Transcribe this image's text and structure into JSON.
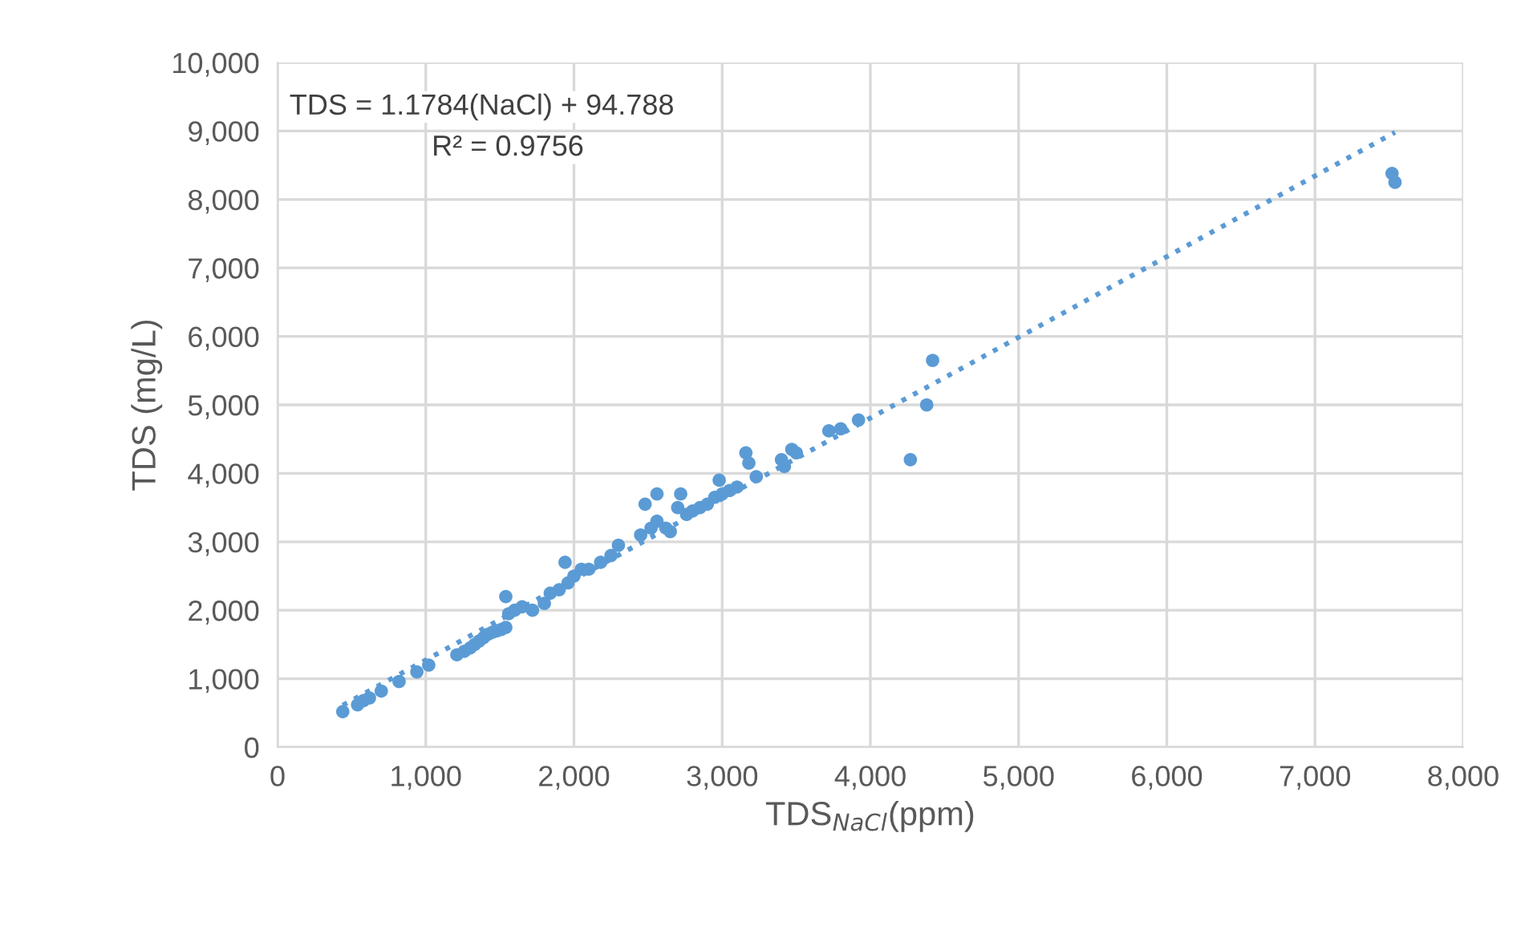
{
  "chart_data": {
    "type": "scatter",
    "xlabel": "TDS$_{NaCl}$(ppm)",
    "ylabel": "TDS (mg/L)",
    "annotations": [
      "TDS = 1.1784(NaCl) + 94.788",
      "R² = 0.9756"
    ],
    "xlim": [
      0,
      8000
    ],
    "ylim": [
      0,
      10000
    ],
    "xticks": [
      0,
      {
        "value": 1000,
        "label": "1,000"
      },
      {
        "value": 2000,
        "label": "2,000"
      },
      {
        "value": 3000,
        "label": "3,000"
      },
      {
        "value": 4000,
        "label": "4,000"
      },
      {
        "value": 5000,
        "label": "5,000"
      },
      {
        "value": 6000,
        "label": "6,000"
      },
      {
        "value": 7000,
        "label": "7,000"
      },
      {
        "value": 8000,
        "label": "8,000"
      }
    ],
    "yticks": [
      0,
      {
        "value": 1000,
        "label": "1,000"
      },
      {
        "value": 2000,
        "label": "2,000"
      },
      {
        "value": 3000,
        "label": "3,000"
      },
      {
        "value": 4000,
        "label": "4,000"
      },
      {
        "value": 5000,
        "label": "5,000"
      },
      {
        "value": 6000,
        "label": "6,000"
      },
      {
        "value": 7000,
        "label": "7,000"
      },
      {
        "value": 8000,
        "label": "8,000"
      },
      {
        "value": 9000,
        "label": "9,000"
      },
      {
        "value": 10000,
        "label": "10,000"
      }
    ],
    "grid": true,
    "series": [
      {
        "color": "#5b9bd5",
        "marker": "circle",
        "x": [
          440,
          540,
          580,
          620,
          700,
          820,
          940,
          1020,
          1210,
          1260,
          1300,
          1330,
          1360,
          1390,
          1420,
          1450,
          1480,
          1510,
          1540,
          1540,
          1560,
          1600,
          1650,
          1720,
          1800,
          1840,
          1900,
          1940,
          1960,
          2000,
          2050,
          2100,
          2180,
          2250,
          2300,
          2450,
          2480,
          2520,
          2560,
          2560,
          2620,
          2650,
          2700,
          2720,
          2760,
          2800,
          2850,
          2900,
          2950,
          2980,
          3000,
          3050,
          3100,
          3160,
          3180,
          3230,
          3400,
          3420,
          3470,
          3500,
          3720,
          3800,
          3920,
          4270,
          4380,
          4420,
          7520,
          7540
        ],
        "values": [
          520,
          620,
          680,
          720,
          820,
          960,
          1100,
          1200,
          1350,
          1400,
          1450,
          1500,
          1550,
          1600,
          1650,
          1680,
          1700,
          1720,
          1750,
          2200,
          1950,
          2000,
          2050,
          2000,
          2100,
          2250,
          2300,
          2700,
          2400,
          2500,
          2600,
          2600,
          2700,
          2800,
          2950,
          3100,
          3550,
          3200,
          3700,
          3300,
          3200,
          3150,
          3500,
          3700,
          3400,
          3450,
          3500,
          3550,
          3650,
          3900,
          3700,
          3750,
          3800,
          4300,
          4150,
          3950,
          4200,
          4100,
          4350,
          4300,
          4620,
          4650,
          4780,
          4200,
          5000,
          5650,
          8380,
          8250
        ]
      },
      {
        "type": "line",
        "color": "#5b9bd5",
        "line_style": "dotted",
        "x": [
          440,
          7540
        ],
        "values": [
          613,
          8980
        ]
      }
    ]
  }
}
